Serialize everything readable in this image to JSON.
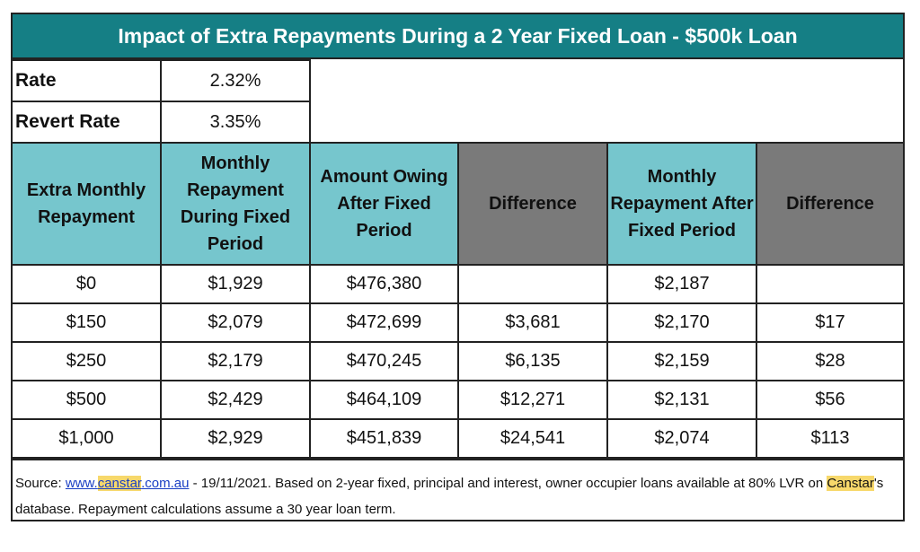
{
  "title": "Impact of Extra Repayments During a 2 Year Fixed Loan - $500k Loan",
  "rate": {
    "label": "Rate",
    "value": "2.32%"
  },
  "revert_rate": {
    "label": "Revert Rate",
    "value": "3.35%"
  },
  "headers": [
    "Extra Monthly Repayment",
    "Monthly Repayment During Fixed Period",
    "Amount Owing After Fixed Period",
    "Difference",
    "Monthly Repayment After Fixed Period",
    "Difference"
  ],
  "rows": [
    [
      "$0",
      "$1,929",
      "$476,380",
      "",
      "$2,187",
      ""
    ],
    [
      "$150",
      "$2,079",
      "$472,699",
      "$3,681",
      "$2,170",
      "$17"
    ],
    [
      "$250",
      "$2,179",
      "$470,245",
      "$6,135",
      "$2,159",
      "$28"
    ],
    [
      "$500",
      "$2,429",
      "$464,109",
      "$12,271",
      "$2,131",
      "$56"
    ],
    [
      "$1,000",
      "$2,929",
      "$451,839",
      "$24,541",
      "$2,074",
      "$113"
    ]
  ],
  "footer": {
    "source_label": "Source: ",
    "link_pre": "www.",
    "link_hl": "canstar",
    "link_post": ".com.au",
    "text1": " - 19/11/2021. Based on 2-year fixed, principal and interest, owner occupier loans available at 80% LVR on ",
    "brand": "Canstar",
    "text2": "'s database. Repayment calculations assume a 30 year loan term."
  },
  "colors": {
    "title_bg": "#157f85",
    "header_teal": "#76c6cd",
    "header_grey": "#7a7a7a",
    "highlight": "#f7d86b"
  }
}
